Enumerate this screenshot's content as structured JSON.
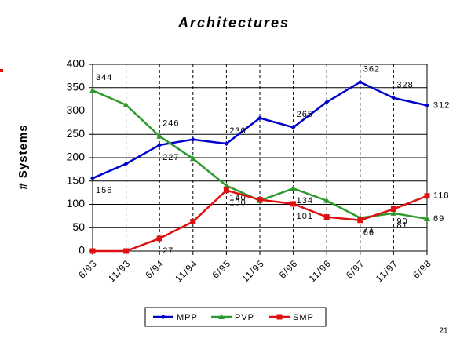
{
  "chart_data": {
    "type": "line",
    "title": "Architectures",
    "y_label": "# Systems",
    "page_number": "21",
    "categories": [
      "6/93",
      "11/93",
      "6/94",
      "11/94",
      "6/95",
      "11/95",
      "6/96",
      "11/96",
      "6/97",
      "11/97",
      "6/98"
    ],
    "series": [
      {
        "name": "MPP",
        "color": "#0000cc",
        "marker": "diamond",
        "values": [
          156,
          187,
          227,
          239,
          230,
          285,
          265,
          319,
          362,
          328,
          312
        ],
        "value_labels": [
          "156",
          null,
          "227",
          null,
          "230",
          null,
          "265",
          null,
          "362",
          "328",
          "312"
        ]
      },
      {
        "name": "PVP",
        "color": "#2e9a2e",
        "marker": "triangle",
        "values": [
          344,
          313,
          246,
          198,
          140,
          108,
          134,
          108,
          71,
          81,
          69
        ],
        "value_labels": [
          "344",
          null,
          "246",
          null,
          "140",
          null,
          "134",
          null,
          "71",
          "81",
          "69"
        ]
      },
      {
        "name": "SMP",
        "color": "#e01010",
        "marker": "square",
        "values": [
          0,
          0,
          27,
          63,
          130,
          110,
          101,
          73,
          66,
          90,
          118
        ],
        "value_labels": [
          null,
          null,
          "27",
          null,
          "130",
          null,
          "101",
          null,
          "66",
          "90",
          "118"
        ]
      }
    ],
    "ylim": [
      0,
      400
    ],
    "yticks": [
      0,
      50,
      100,
      150,
      200,
      250,
      300,
      350,
      400
    ],
    "grid": true,
    "legend": "bottom"
  }
}
